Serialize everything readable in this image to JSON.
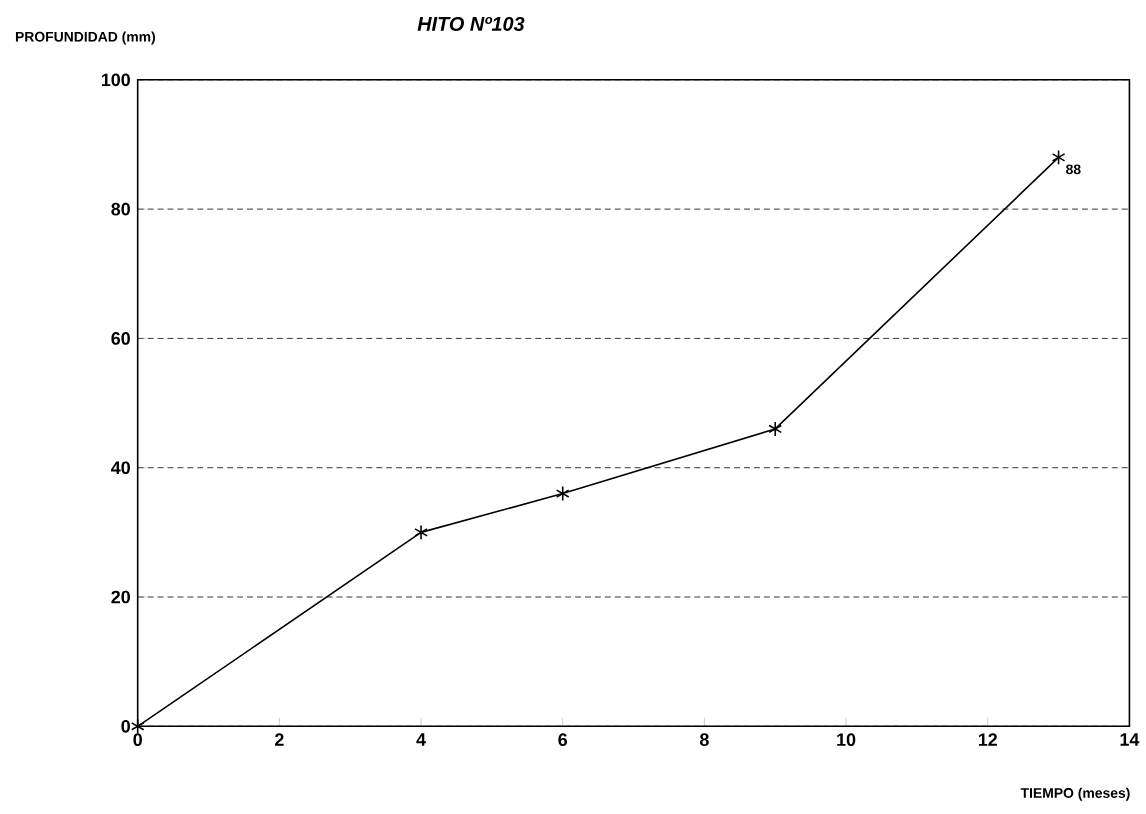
{
  "chart_data": {
    "type": "line",
    "title": "HITO Nº103",
    "xlabel": "TIEMPO (meses)",
    "ylabel": "PROFUNDIDAD (mm)",
    "x": [
      0,
      4,
      6,
      9,
      13
    ],
    "values": [
      0,
      30,
      36,
      46,
      88
    ],
    "value_labels": [
      null,
      null,
      null,
      null,
      "88"
    ],
    "color": "#000000",
    "marker": "cross",
    "line_style": "solid",
    "grid": "y",
    "xlim": [
      0,
      14
    ],
    "xticks": [
      0,
      2,
      4,
      6,
      8,
      10,
      12,
      14
    ],
    "ylim": [
      0,
      100
    ],
    "yticks": [
      0,
      20,
      40,
      60,
      80,
      100
    ]
  }
}
